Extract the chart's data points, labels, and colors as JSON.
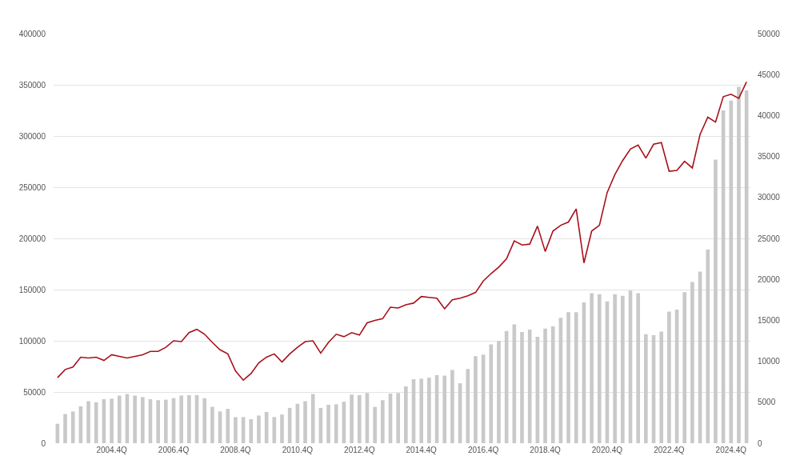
{
  "chart_data": {
    "type": "bar",
    "categories": [
      null,
      null,
      null,
      null,
      null,
      null,
      null,
      "2004.4Q",
      null,
      null,
      null,
      null,
      null,
      null,
      null,
      "2006.4Q",
      null,
      null,
      null,
      null,
      null,
      null,
      null,
      "2008.4Q",
      null,
      null,
      null,
      null,
      null,
      null,
      null,
      "2010.4Q",
      null,
      null,
      null,
      null,
      null,
      null,
      null,
      "2012.4Q",
      null,
      null,
      null,
      null,
      null,
      null,
      null,
      "2014.4Q",
      null,
      null,
      null,
      null,
      null,
      null,
      null,
      "2016.4Q",
      null,
      null,
      null,
      null,
      null,
      null,
      null,
      "2018.4Q",
      null,
      null,
      null,
      null,
      null,
      null,
      null,
      "2020.4Q",
      null,
      null,
      null,
      null,
      null,
      null,
      null,
      "2022.4Q",
      null,
      null,
      null,
      null,
      null,
      null,
      null,
      "2024.4Q",
      null,
      null
    ],
    "series": [
      {
        "color": "#c9c9c9",
        "values": [
          19000,
          28500,
          31000,
          36000,
          41000,
          40000,
          43000,
          43500,
          46500,
          48000,
          46500,
          45000,
          43000,
          42000,
          42500,
          44000,
          46500,
          47000,
          47000,
          44000,
          35500,
          31000,
          33500,
          25500,
          25500,
          23500,
          27000,
          30500,
          25500,
          28000,
          34500,
          38500,
          41000,
          48000,
          34500,
          37500,
          38000,
          40500,
          47500,
          47000,
          49000,
          35500,
          42000,
          48500,
          49000,
          55500,
          62500,
          63000,
          64000,
          66500,
          66000,
          71500,
          58500,
          72500,
          85000,
          86500,
          96500,
          100000,
          109500,
          116000,
          108500,
          111000,
          104000,
          112000,
          114000,
          122500,
          128000,
          128000,
          137500,
          146500,
          145500,
          138500,
          145500,
          144000,
          149000,
          146500,
          106500,
          105500,
          109000,
          128500,
          130500,
          147500,
          157500,
          167500,
          189000,
          277000,
          325000,
          334500,
          348000,
          344500
        ]
      },
      {
        "type": "line",
        "axis": "y2",
        "color": "#a8111a",
        "values": [
          8000,
          9000,
          9300,
          10500,
          10400,
          10500,
          10100,
          10800,
          10600,
          10400,
          10600,
          10800,
          11200,
          11200,
          11700,
          12500,
          12400,
          13500,
          13900,
          13300,
          12300,
          11400,
          10900,
          8800,
          7700,
          8500,
          9800,
          10500,
          10900,
          9900,
          10900,
          11700,
          12400,
          12500,
          11000,
          12300,
          13300,
          13000,
          13500,
          13200,
          14700,
          15000,
          15200,
          16600,
          16500,
          16900,
          17100,
          17900,
          17800,
          17700,
          16400,
          17500,
          17700,
          18000,
          18400,
          19800,
          20700,
          21500,
          22500,
          24700,
          24200,
          24300,
          26500,
          23400,
          25900,
          26600,
          27000,
          28600,
          22000,
          25900,
          26600,
          30600,
          32800,
          34500,
          35900,
          36400,
          34800,
          36500,
          36700,
          33200,
          33300,
          34400,
          33600,
          37700,
          39800,
          39200,
          42300,
          42600,
          42100,
          44100
        ]
      }
    ],
    "ylim": [
      0,
      400000
    ],
    "yticks": [
      0,
      50000,
      100000,
      150000,
      200000,
      250000,
      300000,
      350000,
      400000
    ],
    "y2lim": [
      0,
      50000
    ],
    "y2ticks": [
      0,
      5000,
      10000,
      15000,
      20000,
      25000,
      30000,
      35000,
      40000,
      45000,
      50000
    ],
    "grid": "y",
    "legend": false,
    "line_style": "solid"
  }
}
